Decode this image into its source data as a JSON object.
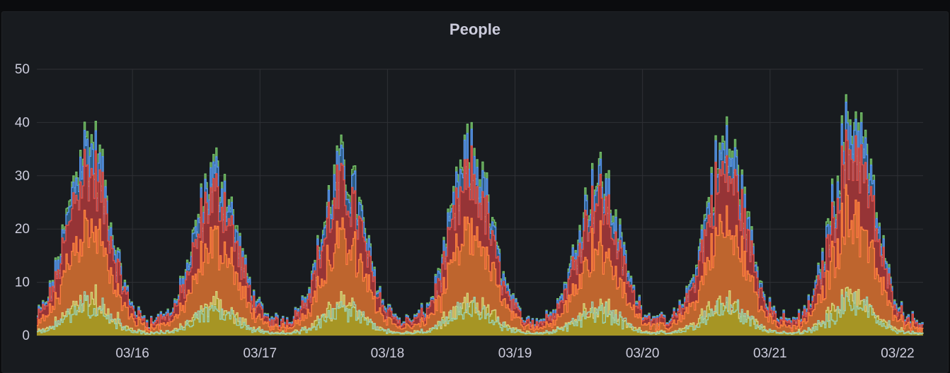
{
  "panel": {
    "title": "People"
  },
  "chart_data": {
    "type": "area",
    "title": "People",
    "xlabel": "",
    "ylabel": "",
    "ylim": [
      0,
      50
    ],
    "y_ticks": [
      0,
      10,
      20,
      30,
      40,
      50
    ],
    "x_tick_labels": [
      "03/16",
      "03/17",
      "03/18",
      "03/19",
      "03/20",
      "03/21",
      "03/22"
    ],
    "x_range_days": [
      15.25,
      22.2
    ],
    "stacked": true,
    "grid": true,
    "daily_peak_totals": [
      {
        "date": "03/15",
        "peak": 38
      },
      {
        "date": "03/16",
        "peak": 32
      },
      {
        "date": "03/17",
        "peak": 33
      },
      {
        "date": "03/18",
        "peak": 35
      },
      {
        "date": "03/19",
        "peak": 31
      },
      {
        "date": "03/20",
        "peak": 37
      },
      {
        "date": "03/21",
        "peak": 42
      }
    ],
    "series": [
      {
        "color": "#d8d27e",
        "fill": "#a39a24",
        "share": 0.18
      },
      {
        "color": "#ff7f3f",
        "fill": "#c26a2e",
        "share": 0.38
      },
      {
        "color": "#e0524b",
        "fill": "#a2302d",
        "share": 0.3
      },
      {
        "color": "#5794f2",
        "fill": "#2a5a8c",
        "share": 0.1
      },
      {
        "color": "#73bf69",
        "fill": "#4a7a3a",
        "share": 0.04
      }
    ],
    "light_line_color": "#9ad0b0"
  }
}
